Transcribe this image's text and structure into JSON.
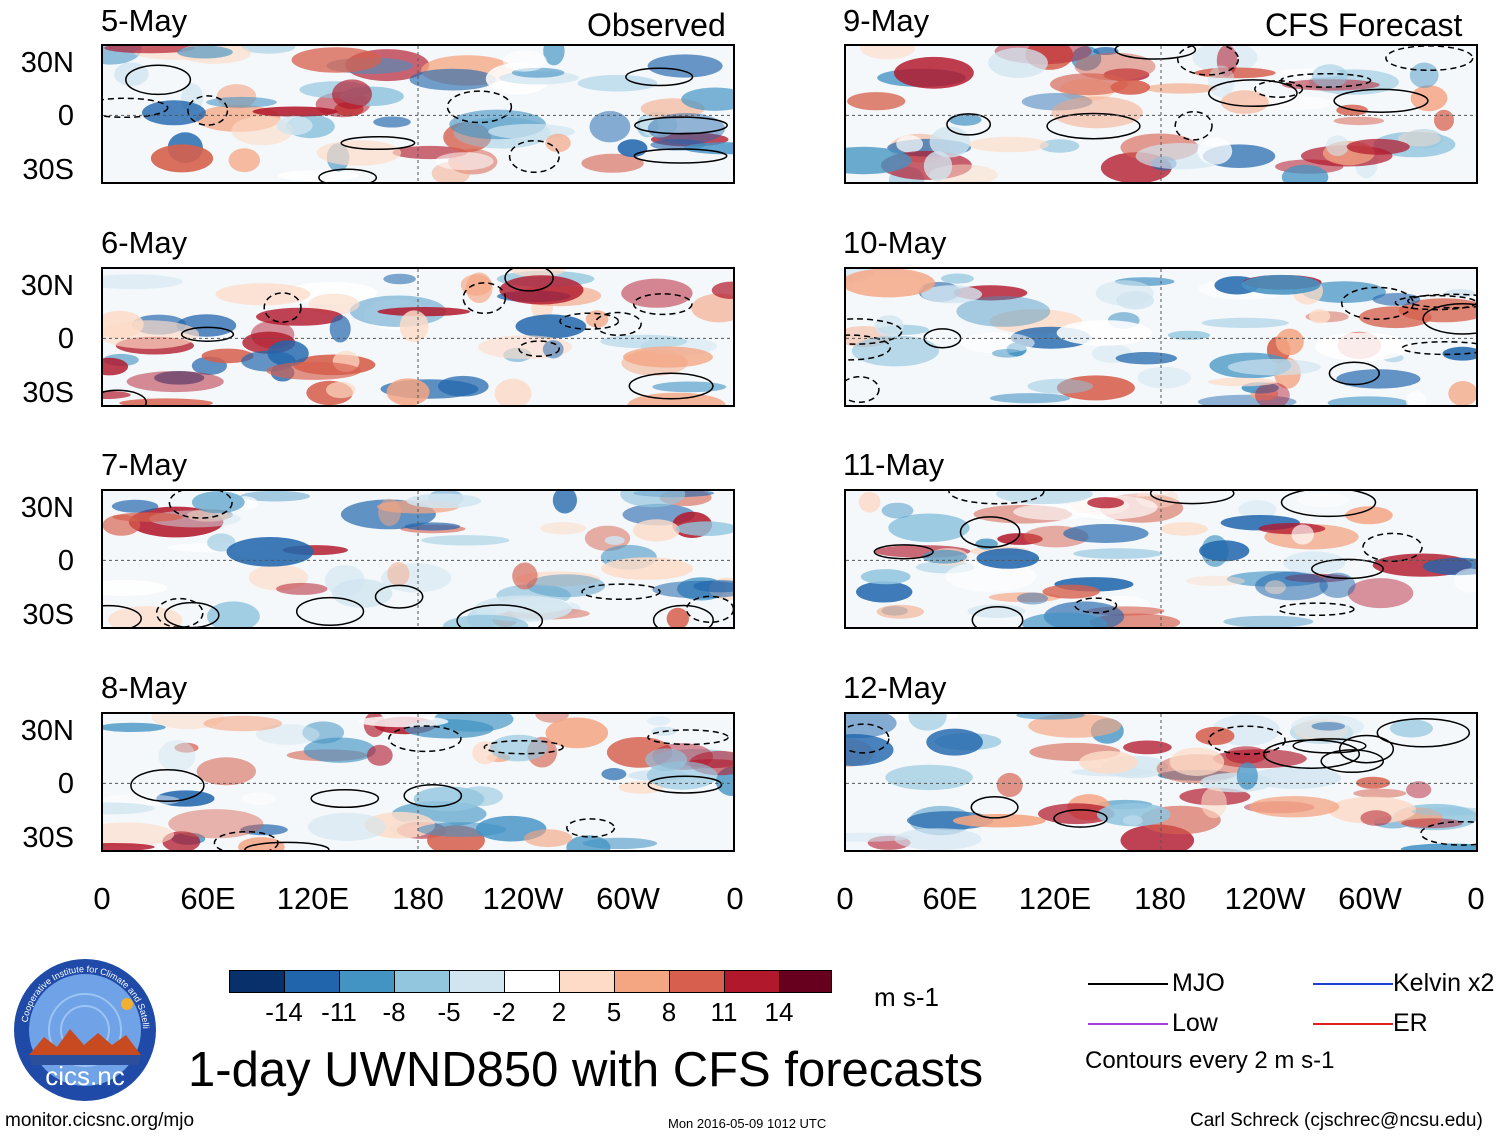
{
  "headers": {
    "observed": "Observed",
    "forecast": "CFS Forecast"
  },
  "observed_panels": [
    "5-May",
    "6-May",
    "7-May",
    "8-May"
  ],
  "forecast_panels": [
    "9-May",
    "10-May",
    "11-May",
    "12-May"
  ],
  "lat_labels": [
    "30N",
    "0",
    "30S"
  ],
  "lon_labels": [
    "0",
    "60E",
    "120E",
    "180",
    "120W",
    "60W",
    "0"
  ],
  "colorbar": {
    "colors": [
      "#08306b",
      "#2166ac",
      "#4393c3",
      "#92c5de",
      "#d1e5f0",
      "#ffffff",
      "#fddbc7",
      "#f4a582",
      "#d6604d",
      "#b2182b",
      "#67001f"
    ],
    "labels": [
      "-14",
      "-11",
      "-8",
      "-5",
      "-2",
      "2",
      "5",
      "8",
      "11",
      "14"
    ],
    "units": "m s-1"
  },
  "legend": {
    "items": [
      {
        "label": "MJO",
        "color": "#000000"
      },
      {
        "label": "Kelvin x2",
        "color": "#1f3fd6"
      },
      {
        "label": "Low",
        "color": "#a040e0"
      },
      {
        "label": "ER",
        "color": "#e02020"
      }
    ],
    "contours_note": "Contours every 2 m s-1"
  },
  "title": "1-day UWND850 with CFS forecasts",
  "footer": {
    "website": "monitor.cicsnc.org/mjo",
    "timestamp": "Mon 2016-05-09 1012 UTC",
    "author": "Carl Schreck (cjschrec@ncsu.edu)"
  },
  "logo": {
    "text": "cics.nc",
    "ring_text": "Cooperative Institute for Climate and Satellites"
  }
}
